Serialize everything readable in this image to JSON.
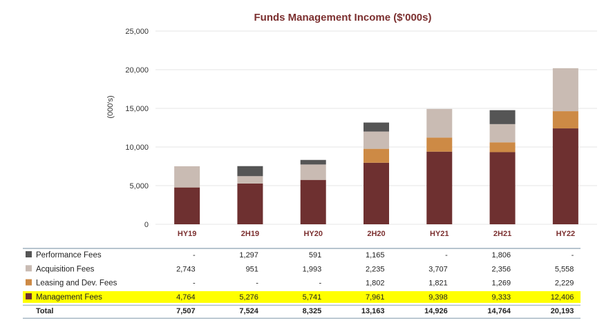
{
  "chart_data": {
    "type": "bar",
    "stacked": true,
    "title": "Funds Management Income ($'000s)",
    "ylabel": "(000's)",
    "xlabel": "",
    "ylim": [
      0,
      25000
    ],
    "yticks": [
      "0",
      "5,000",
      "10,000",
      "15,000",
      "20,000",
      "25,000"
    ],
    "ytick_values": [
      0,
      5000,
      10000,
      15000,
      20000,
      25000
    ],
    "grid": true,
    "categories": [
      "HY19",
      "2H19",
      "HY20",
      "2H20",
      "HY21",
      "2H21",
      "HY22"
    ],
    "series": [
      {
        "name": "Management Fees",
        "color": "#6e3030",
        "values": [
          4764,
          5276,
          5741,
          7961,
          9398,
          9333,
          12406
        ],
        "labels": [
          "4,764",
          "5,276",
          "5,741",
          "7,961",
          "9,398",
          "9,333",
          "12,406"
        ]
      },
      {
        "name": "Leasing and Dev.  Fees",
        "color": "#cd8a45",
        "values": [
          0,
          0,
          0,
          1802,
          1821,
          1269,
          2229
        ],
        "labels": [
          "-",
          "-",
          "-",
          "1,802",
          "1,821",
          "1,269",
          "2,229"
        ]
      },
      {
        "name": "Acquisition Fees",
        "color": "#c9bbb3",
        "values": [
          2743,
          951,
          1993,
          2235,
          3707,
          2356,
          5558
        ],
        "labels": [
          "2,743",
          "951",
          "1,993",
          "2,235",
          "3,707",
          "2,356",
          "5,558"
        ]
      },
      {
        "name": "Performance Fees",
        "color": "#555555",
        "values": [
          0,
          1297,
          591,
          1165,
          0,
          1806,
          0
        ],
        "labels": [
          "-",
          "1,297",
          "591",
          "1,165",
          "-",
          "1,806",
          "-"
        ]
      }
    ],
    "table_order": [
      "Performance Fees",
      "Acquisition Fees",
      "Leasing and Dev.  Fees",
      "Management Fees"
    ],
    "highlighted_row": "Management Fees",
    "highlight_color": "#ffff00",
    "total": {
      "label": "Total",
      "values": [
        "7,507",
        "7,524",
        "8,325",
        "13,163",
        "14,926",
        "14,764",
        "20,193"
      ]
    }
  }
}
